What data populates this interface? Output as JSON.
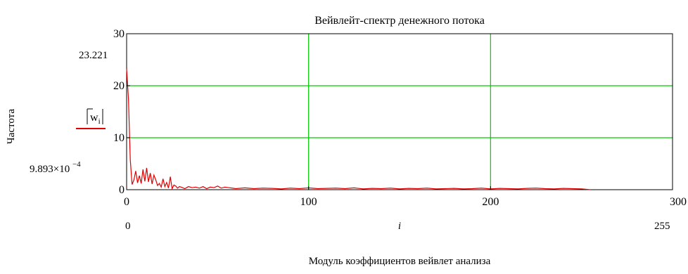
{
  "chart_data": {
    "type": "line",
    "title": "Вейвлейт-спектр денежного потока",
    "ylabel": "Частота",
    "xlabel": "Модуль коэффициентов вейвлет анализа",
    "xvar": "i",
    "legend_label": "|wi|",
    "legend_base": "w",
    "legend_sub": "i",
    "xlim": [
      0,
      300
    ],
    "ylim": [
      0,
      30
    ],
    "xticks": [
      "0",
      "100",
      "200",
      "300"
    ],
    "yticks": [
      "0",
      "10",
      "20",
      "30"
    ],
    "ymarker_max": "23.221",
    "ymarker_min_mantissa": "9.893×10",
    "ymarker_min_exponent": "−4",
    "xmarker_min": "0",
    "xmarker_max": "255",
    "grid": true,
    "colors": {
      "series": "#e00000",
      "grid": "#00cc00",
      "axis": "#000000"
    },
    "series": [
      {
        "x": [
          0,
          1,
          2,
          3,
          4,
          5,
          6,
          7,
          8,
          9,
          10,
          11,
          12,
          13,
          14,
          15,
          16,
          17,
          18,
          19,
          20,
          21,
          22,
          23,
          24,
          25,
          26,
          27,
          28,
          29,
          30,
          32,
          34,
          36,
          38,
          40,
          42,
          44,
          46,
          48,
          50,
          52,
          54,
          56,
          58,
          60,
          65,
          70,
          75,
          80,
          85,
          90,
          95,
          100,
          105,
          110,
          115,
          120,
          125,
          130,
          135,
          140,
          145,
          150,
          155,
          160,
          165,
          170,
          175,
          180,
          185,
          190,
          195,
          200,
          205,
          210,
          215,
          220,
          225,
          230,
          235,
          240,
          245,
          250,
          255
        ],
        "y": [
          23.221,
          17.5,
          5.8,
          1.0,
          1.9,
          3.6,
          1.3,
          2.7,
          1.2,
          3.9,
          1.6,
          4.2,
          1.5,
          3.2,
          1.1,
          2.8,
          1.9,
          0.8,
          1.2,
          0.5,
          2.1,
          0.6,
          1.4,
          0.3,
          2.5,
          0.2,
          0.9,
          0.7,
          0.3,
          0.6,
          0.5,
          0.2,
          0.6,
          0.4,
          0.5,
          0.3,
          0.6,
          0.2,
          0.5,
          0.4,
          0.7,
          0.3,
          0.5,
          0.4,
          0.3,
          0.2,
          0.35,
          0.2,
          0.3,
          0.25,
          0.15,
          0.3,
          0.2,
          0.35,
          0.2,
          0.25,
          0.3,
          0.2,
          0.35,
          0.15,
          0.25,
          0.2,
          0.3,
          0.15,
          0.25,
          0.2,
          0.3,
          0.15,
          0.2,
          0.25,
          0.15,
          0.2,
          0.3,
          0.15,
          0.25,
          0.2,
          0.15,
          0.25,
          0.3,
          0.2,
          0.15,
          0.25,
          0.2,
          0.15,
          0.000989
        ]
      }
    ]
  }
}
